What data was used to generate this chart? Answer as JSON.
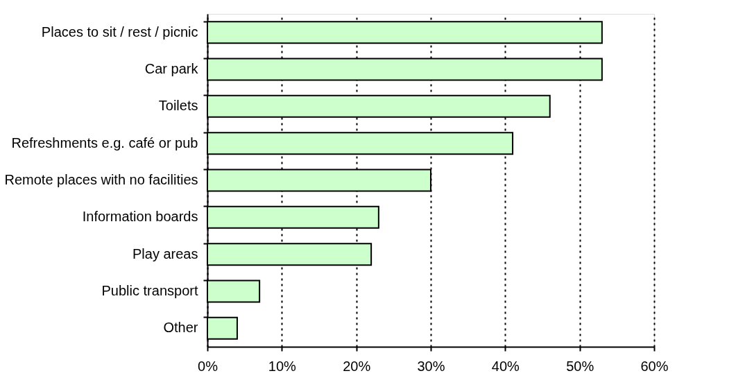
{
  "chart_data": {
    "type": "bar",
    "orientation": "horizontal",
    "categories": [
      "Places to sit / rest / picnic",
      "Car park",
      "Toilets",
      "Refreshments e.g. café or pub",
      "Remote places with no facilities",
      "Information boards",
      "Play areas",
      "Public transport",
      "Other"
    ],
    "values": [
      53,
      53,
      46,
      41,
      30,
      23,
      22,
      7,
      4
    ],
    "color": "#ccffcc",
    "xlim": [
      0,
      60
    ],
    "xticks": [
      {
        "value": 0,
        "label": "0%"
      },
      {
        "value": 10,
        "label": "10%"
      },
      {
        "value": 20,
        "label": "20%"
      },
      {
        "value": 30,
        "label": "30%"
      },
      {
        "value": 40,
        "label": "40%"
      },
      {
        "value": 50,
        "label": "50%"
      },
      {
        "value": 60,
        "label": "60%"
      }
    ],
    "grid": "x"
  }
}
